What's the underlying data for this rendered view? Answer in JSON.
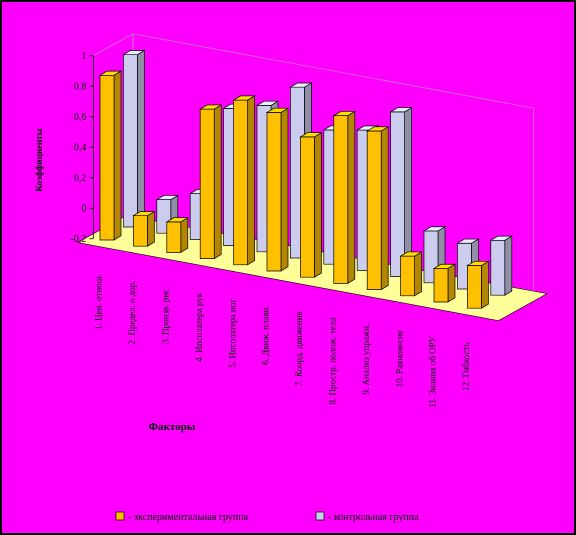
{
  "chart_data": {
    "type": "bar",
    "title": "",
    "xlabel": "Факторы",
    "ylabel": "Коэффициенты",
    "ylim": [
      -0.2,
      1
    ],
    "y_ticks": [
      "-0,2",
      "0",
      "0,2",
      "0,4",
      "0,6",
      "0,8",
      "1"
    ],
    "y_tick_values": [
      -0.2,
      0,
      0.2,
      0.4,
      0.6,
      0.8,
      1
    ],
    "categories": [
      "1. Цен. отнош.",
      "2. Предел. о дор.",
      "3. Произв. рис.",
      "4. Ипсолатера рук",
      "5. Ипсолатера ног",
      "6. Движ. плавн.",
      "7. Коорд. движения",
      "8. Простр. полож. тела",
      "9. Анализ упражн.",
      "10. Равновесие",
      "11. Знания об ОРУ",
      "12. Гибкость"
    ],
    "series": [
      {
        "name": "- экспериментальная группа",
        "color": "#ffc000",
        "values": [
          0.88,
          0.0,
          0.0,
          0.78,
          0.88,
          0.84,
          0.72,
          0.9,
          0.84,
          0.06,
          0.02,
          0.08
        ]
      },
      {
        "name": "- контрольная группа",
        "color": "#ccccee",
        "values": [
          0.93,
          0.02,
          0.1,
          0.7,
          0.76,
          0.92,
          0.68,
          0.72,
          0.88,
          0.14,
          0.1,
          0.16
        ]
      }
    ],
    "grid": false,
    "legend_position": "bottom",
    "colors": {
      "background": "#ff00ff",
      "floor": "#ffff99",
      "outline": "#000000"
    }
  }
}
